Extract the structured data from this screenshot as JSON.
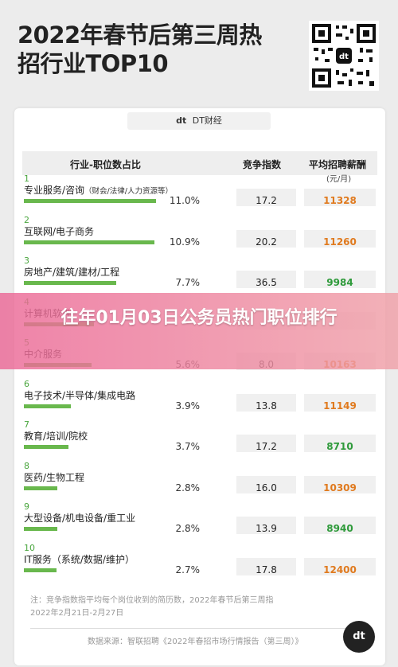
{
  "header": {
    "title": "2022年春节后第三周热招行业TOP10"
  },
  "brand": {
    "logo": "dt",
    "name": "DT财经"
  },
  "table_header": {
    "col1": "行业-职位数占比",
    "col2": "竞争指数",
    "col3": "平均招聘薪酬",
    "col3_unit": "(元/月)"
  },
  "colors": {
    "bar": "#69b84d",
    "rank": "#4aa63e",
    "salary_green": "#2e9a3a",
    "salary_orange": "#e07a1e"
  },
  "chart_data": {
    "type": "table",
    "rows": [
      {
        "rank": "1",
        "category": "专业服务/咨询",
        "sub": "（财会/法律/人力资源等）",
        "share": "11.0%",
        "share_value": 11.0,
        "competition": "17.2",
        "salary": "11328",
        "salary_color": "#e07a1e"
      },
      {
        "rank": "2",
        "category": "互联网/电子商务",
        "sub": "",
        "share": "10.9%",
        "share_value": 10.9,
        "competition": "20.2",
        "salary": "11260",
        "salary_color": "#e07a1e"
      },
      {
        "rank": "3",
        "category": "房地产/建筑/建材/工程",
        "sub": "",
        "share": "7.7%",
        "share_value": 7.7,
        "competition": "36.5",
        "salary": "9984",
        "salary_color": "#2e9a3a"
      },
      {
        "rank": "4",
        "category": "计算机软件",
        "sub": "",
        "share": "",
        "share_value": 5.8,
        "competition": "",
        "salary": "",
        "salary_color": "#e07a1e"
      },
      {
        "rank": "5",
        "category": "中介服务",
        "sub": "",
        "share": "5.6%",
        "share_value": 5.6,
        "competition": "8.0",
        "salary": "10163",
        "salary_color": "#e07a1e"
      },
      {
        "rank": "6",
        "category": "电子技术/半导体/集成电路",
        "sub": "",
        "share": "3.9%",
        "share_value": 3.9,
        "competition": "13.8",
        "salary": "11149",
        "salary_color": "#e07a1e"
      },
      {
        "rank": "7",
        "category": "教育/培训/院校",
        "sub": "",
        "share": "3.7%",
        "share_value": 3.7,
        "competition": "17.2",
        "salary": "8710",
        "salary_color": "#2e9a3a"
      },
      {
        "rank": "8",
        "category": "医药/生物工程",
        "sub": "",
        "share": "2.8%",
        "share_value": 2.8,
        "competition": "16.0",
        "salary": "10309",
        "salary_color": "#e07a1e"
      },
      {
        "rank": "9",
        "category": "大型设备/机电设备/重工业",
        "sub": "",
        "share": "2.8%",
        "share_value": 2.8,
        "competition": "13.9",
        "salary": "8940",
        "salary_color": "#2e9a3a"
      },
      {
        "rank": "10",
        "category": "IT服务（系统/数据/维护）",
        "sub": "",
        "share": "2.7%",
        "share_value": 2.7,
        "competition": "17.8",
        "salary": "12400",
        "salary_color": "#e07a1e"
      }
    ]
  },
  "footer": {
    "note_line1": "注：竞争指数指平均每个岗位收到的简历数，2022年春节后第三周指",
    "note_line2": "2022年2月21日-2月27日",
    "source": "数据来源：智联招聘《2022年春招市场行情报告（第三周）》",
    "logo": "dt"
  },
  "banner": {
    "text": "往年01月03日公务员热门职位排行"
  }
}
